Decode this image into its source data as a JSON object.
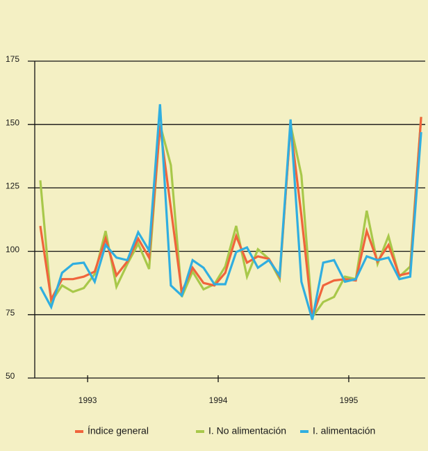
{
  "chart_data": {
    "type": "line",
    "x": [
      0,
      1,
      2,
      3,
      4,
      5,
      6,
      7,
      8,
      9,
      10,
      11,
      12,
      13,
      14,
      15,
      16,
      17,
      18,
      19,
      20,
      21,
      22,
      23,
      24,
      25,
      26,
      27,
      28,
      29,
      30,
      31,
      32,
      33,
      34,
      35
    ],
    "xlim": [
      -1.15,
      35.25
    ],
    "xticks": [
      {
        "value": 4.35,
        "label": "1993"
      },
      {
        "value": 16.35,
        "label": "1994"
      },
      {
        "value": 28.35,
        "label": "1995"
      }
    ],
    "ylim": [
      50,
      175
    ],
    "yticks": [
      50,
      75,
      100,
      125,
      150,
      175
    ],
    "grid": true,
    "legend": "bottom",
    "series": [
      {
        "name": "Índice general",
        "color": "#f0643c",
        "values": [
          110,
          81,
          89,
          89,
          90,
          92,
          105,
          90.5,
          96,
          105,
          97.5,
          149.5,
          117,
          84,
          93.5,
          87.5,
          86.5,
          91.5,
          106,
          95.5,
          98,
          97,
          90,
          149.5,
          114,
          74,
          86.5,
          88.5,
          89,
          88.5,
          108,
          96,
          102.5,
          90.5,
          91.5,
          153
        ]
      },
      {
        "name": "I. No alimentación",
        "color": "#a8c84a",
        "values": [
          128,
          80,
          86.5,
          84,
          85.5,
          91,
          108,
          86,
          95,
          103,
          93,
          150,
          134,
          82,
          92,
          85,
          87,
          94,
          110,
          90,
          100.8,
          97,
          89,
          150,
          130,
          74,
          80,
          82,
          90,
          89,
          116,
          95,
          106,
          90,
          94,
          153
        ]
      },
      {
        "name": "I. alimentación",
        "color": "#30aee0",
        "values": [
          86,
          78,
          91.5,
          95,
          95.5,
          88,
          102.5,
          97.5,
          96.5,
          107.5,
          100.3,
          158,
          86.5,
          82.5,
          96.5,
          93.5,
          87,
          87,
          99.7,
          101.5,
          93.5,
          96.5,
          90.5,
          152,
          88,
          73,
          95.5,
          96.5,
          88,
          89,
          98,
          96.5,
          97.5,
          89,
          90,
          147
        ]
      }
    ]
  }
}
